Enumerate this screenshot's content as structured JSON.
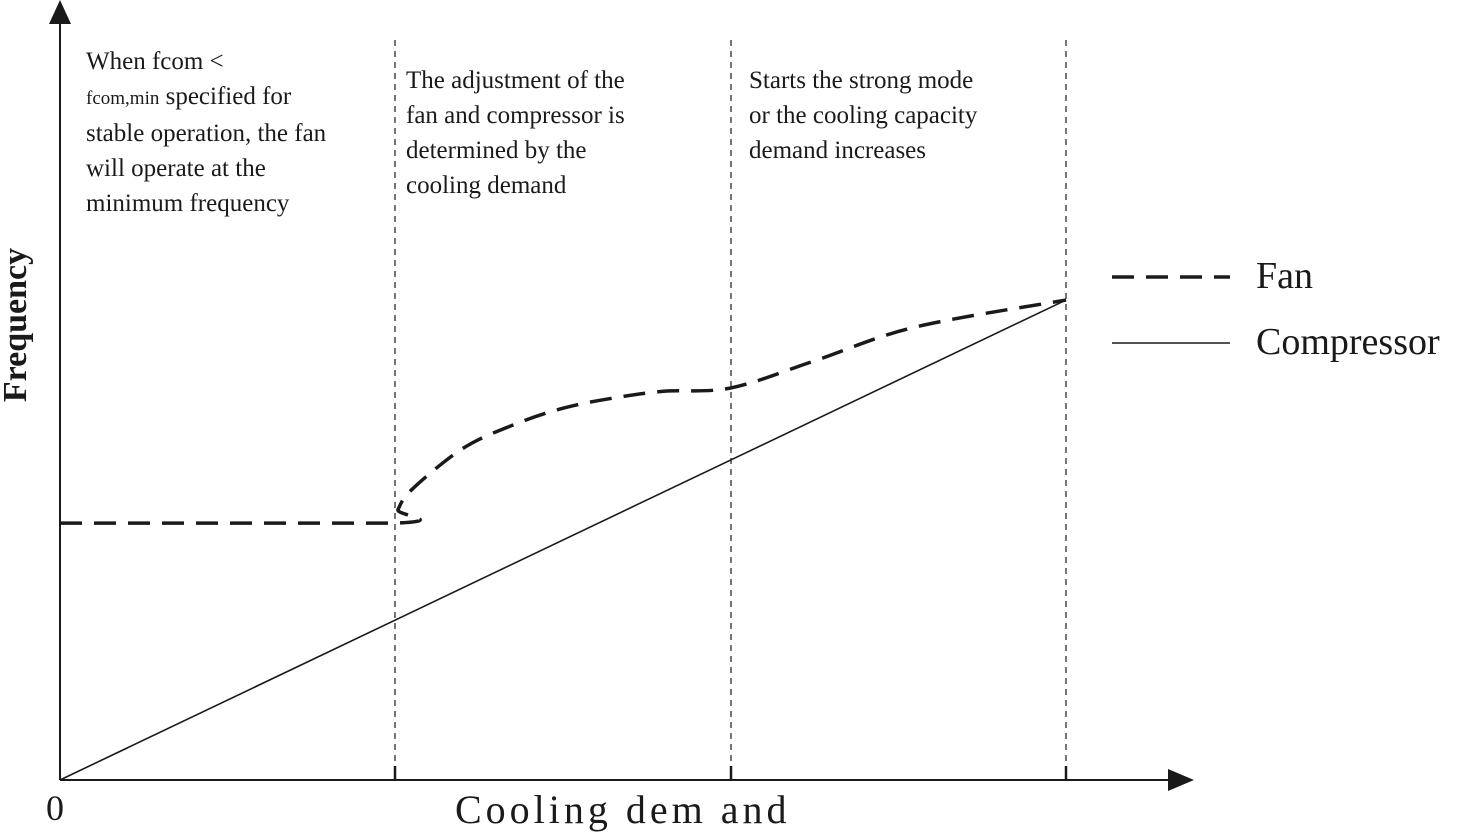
{
  "chart_data": {
    "type": "line",
    "xlabel": "Cooling dem and",
    "ylabel": "Frequency",
    "origin_label": "0",
    "xlim": [
      0,
      1.12
    ],
    "ylim": [
      0,
      1.0
    ],
    "region_boundaries": [
      0.333,
      0.667,
      1.0
    ],
    "regions": [
      {
        "lines": [
          {
            "text": "When fcom <"
          },
          {
            "text": " specified for",
            "sub": "fcom,min"
          },
          {
            "text": "stable operation, the fan"
          },
          {
            "text": "will operate at the"
          },
          {
            "text": "minimum frequency"
          }
        ]
      },
      {
        "lines": [
          {
            "text": "The adjustment of the"
          },
          {
            "text": "fan and compressor is"
          },
          {
            "text": "determined by the"
          },
          {
            "text": "cooling demand"
          }
        ]
      },
      {
        "lines": [
          {
            "text": " Starts the strong mode"
          },
          {
            "text": "or the cooling capacity"
          },
          {
            "text": "demand increases"
          }
        ]
      }
    ],
    "series": [
      {
        "name": "Fan",
        "style": "dashed",
        "x": [
          0,
          0.333,
          0.336,
          0.35,
          0.4,
          0.45,
          0.5,
          0.55,
          0.6,
          0.667,
          0.75,
          0.85,
          1.0
        ],
        "y": [
          0.38,
          0.38,
          0.4,
          0.43,
          0.49,
          0.525,
          0.55,
          0.565,
          0.575,
          0.58,
          0.62,
          0.67,
          0.71
        ]
      },
      {
        "name": "Compressor",
        "style": "solid",
        "x": [
          0,
          1.0
        ],
        "y": [
          0,
          0.71
        ]
      }
    ],
    "legend_position": "right"
  },
  "colors": {
    "ink": "#1a1a1a",
    "background": "#ffffff"
  }
}
